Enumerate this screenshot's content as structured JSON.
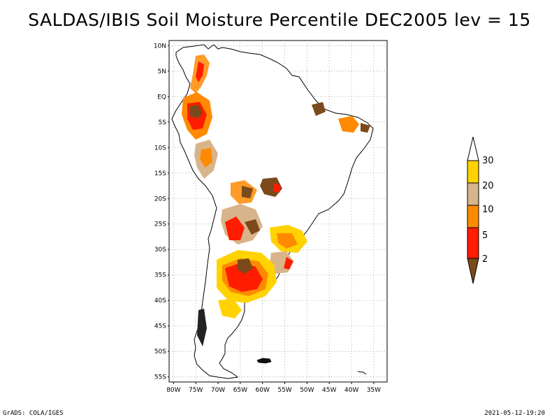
{
  "title": "SALDAS/IBIS Soil Moisture Percentile DEC2005 lev = 15",
  "map": {
    "region": "South America",
    "lat_labels": [
      "10N",
      "5N",
      "EQ",
      "5S",
      "10S",
      "15S",
      "20S",
      "25S",
      "30S",
      "35S",
      "40S",
      "45S",
      "50S",
      "55S"
    ],
    "lon_labels": [
      "80W",
      "75W",
      "70W",
      "65W",
      "60W",
      "55W",
      "50W",
      "45W",
      "40W",
      "35W"
    ],
    "lat_values": [
      10,
      5,
      0,
      -5,
      -10,
      -15,
      -20,
      -25,
      -30,
      -35,
      -40,
      -45,
      -50,
      -55
    ],
    "lon_values": [
      -80,
      -75,
      -70,
      -65,
      -60,
      -55,
      -50,
      -45,
      -40,
      -35
    ],
    "lat_range": [
      -56,
      11
    ],
    "lon_range": [
      -81,
      -32
    ]
  },
  "colorbar": {
    "levels": [
      "2",
      "5",
      "10",
      "20",
      "30"
    ],
    "colors": [
      "#7a4a1a",
      "#ff1c00",
      "#ff8a00",
      "#d8b48a",
      "#ffd200",
      "#ffffff"
    ]
  },
  "footer": {
    "left": "GrADS: COLA/IGES",
    "right": "2021-05-12-19:20"
  },
  "colors": {
    "dark_brown": "#7a4a1a",
    "red": "#ff1c00",
    "orange": "#ff8a00",
    "tan": "#d8b48a",
    "yellow": "#ffd200"
  }
}
